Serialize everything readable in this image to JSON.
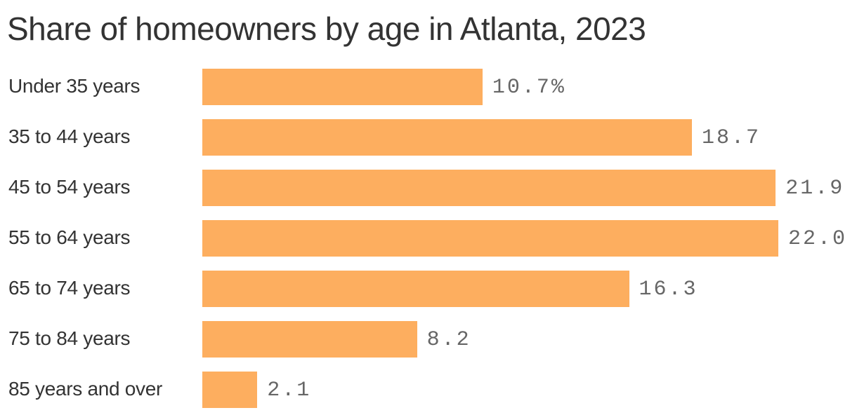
{
  "title": "Share of homeowners by age in Atlanta, 2023",
  "colors": {
    "bar": "#fdae5f",
    "text": "#333333",
    "value_text": "#666666"
  },
  "rows": [
    {
      "label": "Under 35 years",
      "value": 10.7,
      "value_label": "10.7%"
    },
    {
      "label": "35 to 44 years",
      "value": 18.7,
      "value_label": "18.7"
    },
    {
      "label": "45 to 54 years",
      "value": 21.9,
      "value_label": "21.9"
    },
    {
      "label": "55 to 64 years",
      "value": 22.0,
      "value_label": "22.0"
    },
    {
      "label": "65 to 74 years",
      "value": 16.3,
      "value_label": "16.3"
    },
    {
      "label": "75 to 84 years",
      "value": 8.2,
      "value_label": "8.2"
    },
    {
      "label": "85 years and over",
      "value": 2.1,
      "value_label": "2.1"
    }
  ],
  "chart_data": {
    "type": "bar",
    "orientation": "horizontal",
    "title": "Share of homeowners by age in Atlanta, 2023",
    "categories": [
      "Under 35 years",
      "35 to 44 years",
      "45 to 54 years",
      "55 to 64 years",
      "65 to 74 years",
      "75 to 84 years",
      "85 years and over"
    ],
    "values": [
      10.7,
      18.7,
      21.9,
      22.0,
      16.3,
      8.2,
      2.1
    ],
    "unit": "%",
    "xlabel": "",
    "ylabel": "",
    "grid": false,
    "legend": null
  }
}
